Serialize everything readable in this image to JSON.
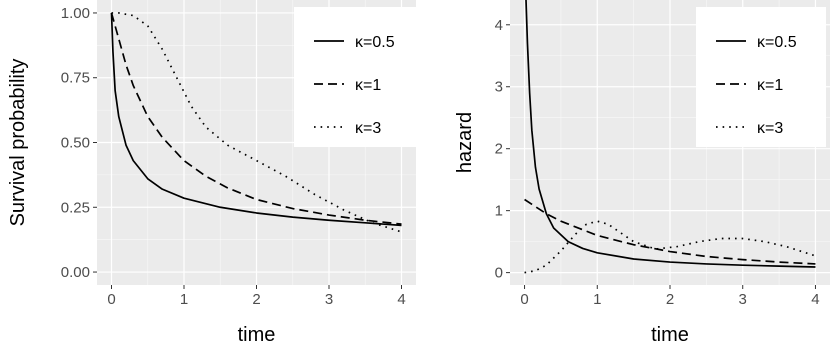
{
  "colors": {
    "panel_background": "#ebebeb",
    "grid_major": "#ffffff",
    "line": "#000000",
    "tick_text": "#4d4d4d"
  },
  "chart_data": [
    {
      "type": "line",
      "xlabel": "time",
      "ylabel": "Survival probability",
      "xlim": [
        -0.2,
        4.2
      ],
      "ylim": [
        -0.05,
        1.05
      ],
      "x_ticks": [
        0,
        1,
        2,
        3,
        4
      ],
      "y_ticks": [
        0.0,
        0.25,
        0.5,
        0.75,
        1.0
      ],
      "x_tick_labels": [
        "0",
        "1",
        "2",
        "3",
        "4"
      ],
      "y_tick_labels": [
        "0.00",
        "0.25",
        "0.50",
        "0.75",
        "1.00"
      ],
      "grid": true,
      "legend_position": "top-right",
      "series": [
        {
          "name": "κ=0.5",
          "dash": "solid",
          "x": [
            0,
            0.02,
            0.05,
            0.1,
            0.2,
            0.3,
            0.5,
            0.7,
            1,
            1.5,
            2,
            2.5,
            3,
            3.5,
            4
          ],
          "y": [
            1.0,
            0.85,
            0.7,
            0.6,
            0.49,
            0.43,
            0.36,
            0.32,
            0.285,
            0.25,
            0.228,
            0.212,
            0.2,
            0.19,
            0.18
          ]
        },
        {
          "name": "κ=1",
          "dash": "dashed",
          "x": [
            0,
            0.1,
            0.2,
            0.3,
            0.5,
            0.7,
            1,
            1.3,
            1.6,
            2,
            2.5,
            3,
            3.5,
            4
          ],
          "y": [
            1.0,
            0.9,
            0.8,
            0.72,
            0.6,
            0.52,
            0.43,
            0.37,
            0.325,
            0.28,
            0.245,
            0.22,
            0.2,
            0.185
          ]
        },
        {
          "name": "κ=3",
          "dash": "dotted",
          "x": [
            0,
            0.1,
            0.3,
            0.5,
            0.7,
            0.9,
            1.1,
            1.3,
            1.6,
            2,
            2.4,
            2.8,
            3.2,
            3.6,
            4
          ],
          "y": [
            1.0,
            1.0,
            0.99,
            0.95,
            0.86,
            0.75,
            0.64,
            0.56,
            0.49,
            0.43,
            0.37,
            0.3,
            0.24,
            0.19,
            0.155
          ]
        }
      ]
    },
    {
      "type": "line",
      "xlabel": "time",
      "ylabel": "hazard",
      "xlim": [
        -0.2,
        4.2
      ],
      "ylim": [
        -0.2,
        4.4
      ],
      "x_ticks": [
        0,
        1,
        2,
        3,
        4
      ],
      "y_ticks": [
        0,
        1,
        2,
        3,
        4
      ],
      "x_tick_labels": [
        "0",
        "1",
        "2",
        "3",
        "4"
      ],
      "y_tick_labels": [
        "0",
        "1",
        "2",
        "3",
        "4"
      ],
      "grid": true,
      "legend_position": "top-right",
      "series": [
        {
          "name": "κ=0.5",
          "dash": "solid",
          "x": [
            0.02,
            0.04,
            0.07,
            0.1,
            0.15,
            0.2,
            0.3,
            0.4,
            0.6,
            0.8,
            1,
            1.5,
            2,
            2.5,
            3,
            3.5,
            4
          ],
          "y": [
            4.4,
            3.7,
            2.9,
            2.3,
            1.7,
            1.35,
            0.95,
            0.72,
            0.5,
            0.39,
            0.32,
            0.22,
            0.17,
            0.14,
            0.12,
            0.105,
            0.09
          ]
        },
        {
          "name": "κ=1",
          "dash": "dashed",
          "x": [
            0,
            0.3,
            0.5,
            1,
            1.5,
            2,
            2.5,
            3,
            3.5,
            4
          ],
          "y": [
            1.18,
            0.95,
            0.83,
            0.6,
            0.45,
            0.34,
            0.26,
            0.21,
            0.17,
            0.14
          ]
        },
        {
          "name": "κ=3",
          "dash": "dotted",
          "x": [
            0,
            0.15,
            0.3,
            0.5,
            0.7,
            0.85,
            1,
            1.15,
            1.3,
            1.5,
            1.8,
            2.1,
            2.4,
            2.7,
            3,
            3.3,
            3.6,
            4
          ],
          "y": [
            0,
            0.03,
            0.12,
            0.35,
            0.62,
            0.78,
            0.83,
            0.78,
            0.66,
            0.5,
            0.38,
            0.42,
            0.5,
            0.55,
            0.55,
            0.5,
            0.42,
            0.27
          ]
        }
      ]
    }
  ]
}
